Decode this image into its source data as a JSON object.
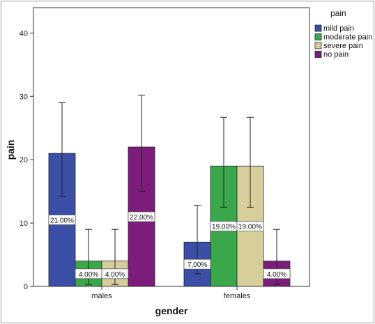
{
  "chart_data": {
    "type": "bar",
    "xlabel": "gender",
    "ylabel": "pain",
    "ylim": [
      0,
      44
    ],
    "yticks": [
      0,
      10,
      20,
      30,
      40
    ],
    "categories": [
      "males",
      "females"
    ],
    "grid": false,
    "legend": {
      "title": "pain",
      "position": "top-right"
    },
    "series": [
      {
        "name": "mild pain",
        "color": "#3b4fa7",
        "values": [
          21,
          7
        ],
        "labels": [
          "21.00%",
          "7.00%"
        ],
        "error_low": [
          14.2,
          2.0
        ],
        "error_high": [
          29.0,
          12.8
        ]
      },
      {
        "name": "moderate pain",
        "color": "#3aa84a",
        "values": [
          4,
          19
        ],
        "labels": [
          "4.00%",
          "19.00%"
        ],
        "error_low": [
          0.3,
          12.5
        ],
        "error_high": [
          9.0,
          26.7
        ]
      },
      {
        "name": "severe pain",
        "color": "#d6cf9c",
        "values": [
          4,
          19
        ],
        "labels": [
          "4.00%",
          "19.00%"
        ],
        "error_low": [
          0.3,
          12.5
        ],
        "error_high": [
          9.0,
          26.7
        ]
      },
      {
        "name": "no pain",
        "color": "#7d1d7b",
        "values": [
          22,
          4
        ],
        "labels": [
          "22.00%",
          "4.00%"
        ],
        "error_low": [
          15.0,
          0.3
        ],
        "error_high": [
          30.2,
          9.0
        ]
      }
    ]
  }
}
